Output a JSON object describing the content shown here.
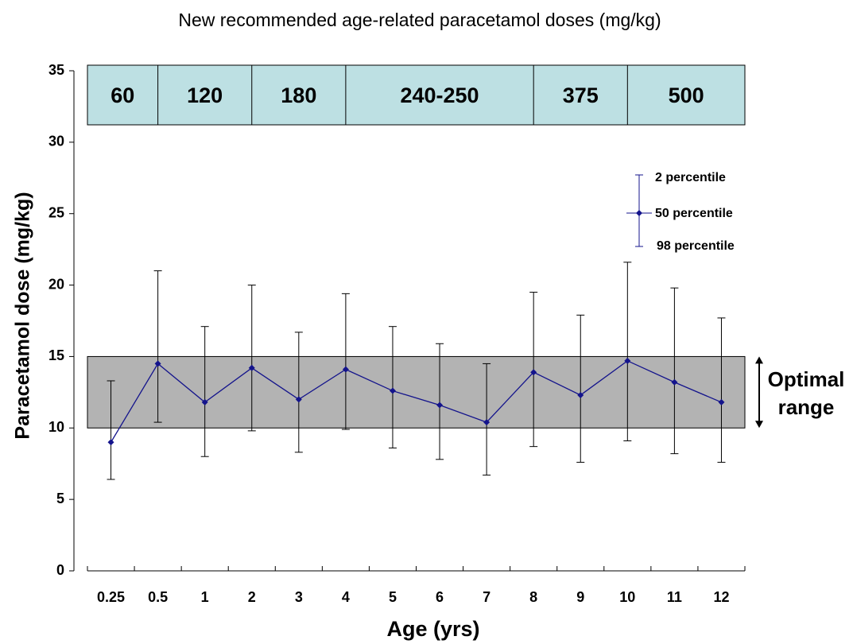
{
  "chart_data": {
    "type": "line",
    "title": "New recommended age-related paracetamol doses (mg/kg)",
    "xlabel": "Age (yrs)",
    "ylabel": "Paracetamol dose (mg/kg)",
    "categories": [
      "0.25",
      "0.5",
      "1",
      "2",
      "3",
      "4",
      "5",
      "6",
      "7",
      "8",
      "9",
      "10",
      "11",
      "12"
    ],
    "series": [
      {
        "name": "50 percentile",
        "color": "#14148c",
        "values": [
          9.0,
          14.5,
          11.8,
          14.2,
          12.0,
          14.1,
          12.6,
          11.6,
          10.4,
          13.9,
          12.3,
          14.7,
          13.2,
          11.8
        ]
      }
    ],
    "upper": {
      "name": "2 percentile",
      "values": [
        13.3,
        21.0,
        17.1,
        20.0,
        16.7,
        19.4,
        17.1,
        15.9,
        14.5,
        19.5,
        17.9,
        21.6,
        19.8,
        17.7
      ]
    },
    "lower": {
      "name": "98 percentile",
      "values": [
        6.4,
        10.4,
        8.0,
        9.8,
        8.3,
        9.9,
        8.6,
        7.8,
        6.7,
        8.7,
        7.6,
        9.1,
        8.2,
        7.6
      ]
    },
    "ylim": [
      0,
      35
    ],
    "yticks": [
      0,
      5,
      10,
      15,
      20,
      25,
      30,
      35
    ],
    "optimal_range": {
      "from": 10,
      "to": 15,
      "color": "#b3b3b3",
      "label": [
        "Optimal",
        "range"
      ]
    },
    "dose_bands": {
      "color": "#bde0e3",
      "labels": [
        "60",
        "120",
        "180",
        "240-250",
        "375",
        "500"
      ]
    }
  }
}
